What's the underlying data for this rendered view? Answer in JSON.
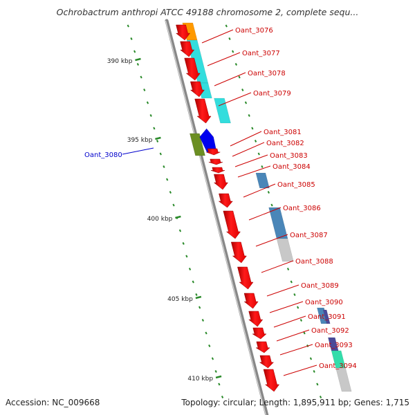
{
  "title": "Ochrobactrum anthropi ATCC 49188 chromosome 2, complete sequ...",
  "accession": "Accession: NC_009668",
  "topology": "Topology: circular; Length: 1,895,911 bp; Genes: 1,715",
  "ruler": {
    "labels": [
      "390 kbp",
      "395 kbp",
      "400 kbp",
      "405 kbp",
      "410 kbp"
    ]
  },
  "genes": [
    {
      "name": "Oant_3076",
      "strand": "reverse",
      "color": "#cc0000"
    },
    {
      "name": "Oant_3077",
      "strand": "reverse",
      "color": "#cc0000"
    },
    {
      "name": "Oant_3078",
      "strand": "reverse",
      "color": "#cc0000"
    },
    {
      "name": "Oant_3079",
      "strand": "reverse",
      "color": "#cc0000"
    },
    {
      "name": "Oant_3080",
      "strand": "forward",
      "color": "#0000cc"
    },
    {
      "name": "Oant_3081",
      "strand": "reverse",
      "color": "#cc0000"
    },
    {
      "name": "Oant_3082",
      "strand": "reverse",
      "color": "#cc0000"
    },
    {
      "name": "Oant_3083",
      "strand": "reverse",
      "color": "#cc0000"
    },
    {
      "name": "Oant_3084",
      "strand": "reverse",
      "color": "#cc0000"
    },
    {
      "name": "Oant_3085",
      "strand": "reverse",
      "color": "#cc0000"
    },
    {
      "name": "Oant_3086",
      "strand": "reverse",
      "color": "#cc0000"
    },
    {
      "name": "Oant_3087",
      "strand": "reverse",
      "color": "#cc0000"
    },
    {
      "name": "Oant_3088",
      "strand": "reverse",
      "color": "#cc0000"
    },
    {
      "name": "Oant_3089",
      "strand": "reverse",
      "color": "#cc0000"
    },
    {
      "name": "Oant_3090",
      "strand": "reverse",
      "color": "#cc0000"
    },
    {
      "name": "Oant_3091",
      "strand": "reverse",
      "color": "#cc0000"
    },
    {
      "name": "Oant_3092",
      "strand": "reverse",
      "color": "#cc0000"
    },
    {
      "name": "Oant_3093",
      "strand": "reverse",
      "color": "#cc0000"
    },
    {
      "name": "Oant_3094",
      "strand": "reverse",
      "color": "#cc0000"
    }
  ],
  "colors": {
    "gene_arrow": "#ee0000",
    "backbone": "#888888",
    "tick": "#2a8a2a",
    "forward_gene": "#0000ee",
    "forward_neighbor": "#6b8e23",
    "domain_orange": "#ff9900",
    "domain_cyan": "#33dddd",
    "domain_steel": "#4a86b8",
    "domain_gray": "#c8c8c8",
    "domain_navy": "#4a4a99",
    "domain_teal": "#33ddaa"
  }
}
